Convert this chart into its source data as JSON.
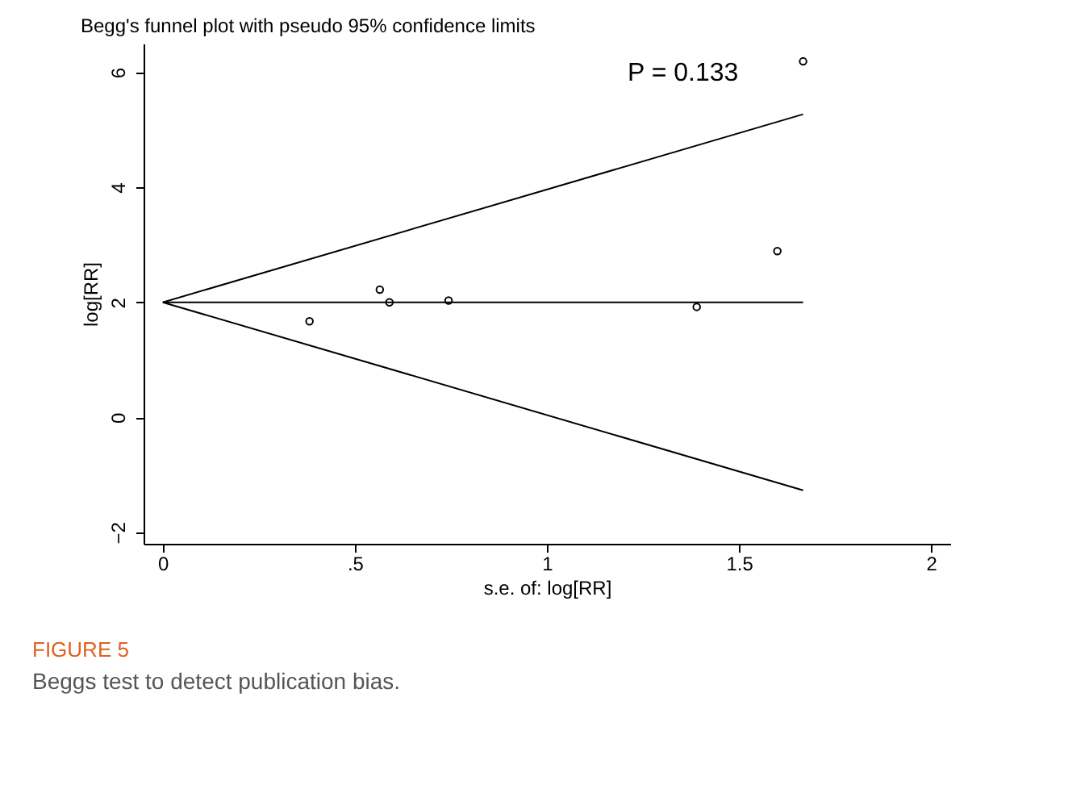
{
  "chart_data": {
    "type": "scatter",
    "title": "Begg's funnel plot with pseudo 95% confidence limits",
    "xlabel": "s.e. of: log[RR]",
    "ylabel": "log[RR]",
    "annotations": [
      "P = 0.133",
      "FIGURE 5",
      "Beggs test to detect publication bias."
    ],
    "xlim": [
      -0.05,
      2.05
    ],
    "ylim": [
      -2.2,
      6.5
    ],
    "xticks": [
      0,
      {
        "value": 0.5,
        "label": ".5"
      },
      1,
      {
        "value": 1.5,
        "label": "1.5"
      },
      2
    ],
    "yticks": [
      -2,
      0,
      2,
      4,
      6
    ],
    "grid": false,
    "series": [
      {
        "marker": "circle",
        "color": "#000000",
        "x": [
          0.382,
          0.565,
          0.59,
          0.744,
          1.39,
          1.6,
          1.667
        ],
        "values": [
          1.67,
          2.22,
          2.0,
          2.03,
          1.92,
          2.89,
          6.19
        ]
      },
      {
        "type": "line",
        "color": "#000000",
        "x": [
          0,
          1.667
        ],
        "values": [
          2,
          5.27
        ]
      },
      {
        "type": "line",
        "color": "#000000",
        "x": [
          0,
          1.667
        ],
        "values": [
          2,
          2
        ]
      },
      {
        "type": "line",
        "color": "#000000",
        "x": [
          0,
          1.667
        ],
        "values": [
          2,
          -1.27
        ]
      }
    ]
  }
}
